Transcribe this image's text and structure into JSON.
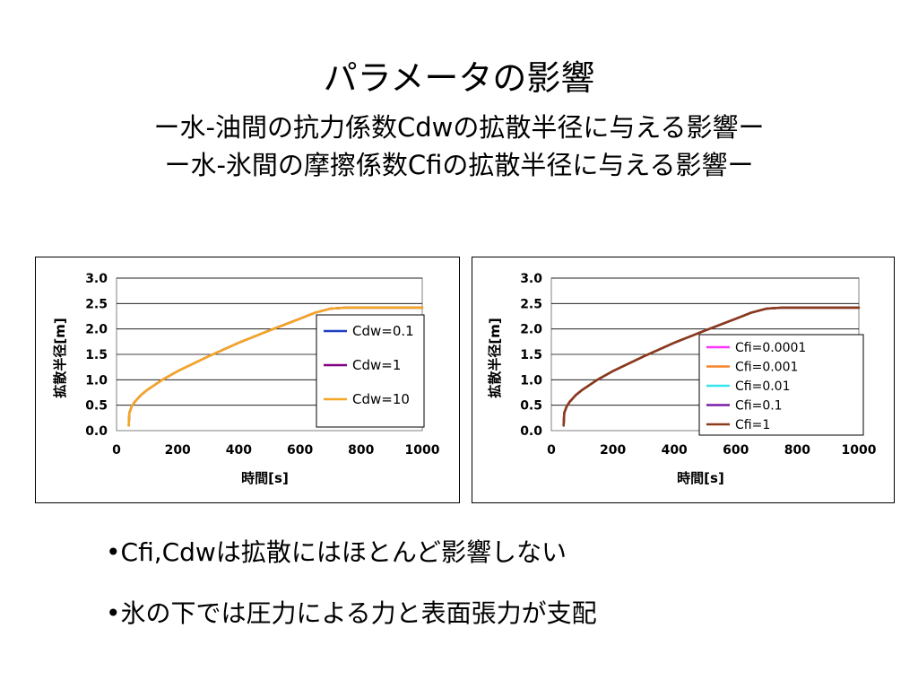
{
  "slide": {
    "title": "パラメータの影響",
    "subtitle1": "ー水-油間の抗力係数Cdwの拡散半径に与える影響ー",
    "subtitle2": "ー水-氷間の摩擦係数Cfiの拡散半径に与える影響ー",
    "bullets": [
      "•Cfi,Cdwは拡散にはほとんど影響しない",
      "•氷の下では圧力による力と表面張力が支配"
    ]
  },
  "chart_data": [
    {
      "type": "line",
      "xlabel": "時間[s]",
      "ylabel": "拡散半径[m]",
      "xlim": [
        0,
        1000
      ],
      "ylim": [
        0,
        3.0
      ],
      "xticks": [
        "0",
        "200",
        "400",
        "600",
        "800",
        "1000"
      ],
      "yticks": [
        "0.0",
        "0.5",
        "1.0",
        "1.5",
        "2.0",
        "2.5",
        "3.0"
      ],
      "grid": true,
      "legend_position": "right",
      "x": [
        40,
        42,
        50,
        60,
        80,
        100,
        150,
        200,
        300,
        400,
        500,
        600,
        650,
        700,
        750,
        800,
        900,
        1000
      ],
      "series": [
        {
          "name": "Cdw=0.1",
          "color": "#1f3fbf",
          "values": [
            0.1,
            0.35,
            0.48,
            0.57,
            0.7,
            0.8,
            1.0,
            1.17,
            1.46,
            1.73,
            1.97,
            2.2,
            2.32,
            2.4,
            2.42,
            2.42,
            2.42,
            2.42
          ]
        },
        {
          "name": "Cdw=1",
          "color": "#800080",
          "values": [
            0.1,
            0.35,
            0.48,
            0.57,
            0.7,
            0.8,
            1.0,
            1.17,
            1.46,
            1.73,
            1.97,
            2.2,
            2.32,
            2.4,
            2.42,
            2.42,
            2.42,
            2.42
          ]
        },
        {
          "name": "Cdw=10",
          "color": "#f5a623",
          "values": [
            0.1,
            0.35,
            0.48,
            0.57,
            0.7,
            0.8,
            1.0,
            1.17,
            1.46,
            1.73,
            1.97,
            2.2,
            2.32,
            2.4,
            2.42,
            2.42,
            2.42,
            2.42
          ]
        }
      ]
    },
    {
      "type": "line",
      "xlabel": "時間[s]",
      "ylabel": "拡散半径[m]",
      "xlim": [
        0,
        1000
      ],
      "ylim": [
        0,
        3.0
      ],
      "xticks": [
        "0",
        "200",
        "400",
        "600",
        "800",
        "1000"
      ],
      "yticks": [
        "0.0",
        "0.5",
        "1.0",
        "1.5",
        "2.0",
        "2.5",
        "3.0"
      ],
      "grid": true,
      "legend_position": "bottom-right",
      "x": [
        40,
        42,
        50,
        60,
        80,
        100,
        150,
        200,
        300,
        400,
        500,
        600,
        650,
        700,
        750,
        800,
        900,
        1000
      ],
      "series": [
        {
          "name": "Cfi=0.0001",
          "color": "#ff33ff",
          "values": [
            0.1,
            0.35,
            0.48,
            0.57,
            0.7,
            0.8,
            1.0,
            1.17,
            1.46,
            1.73,
            1.97,
            2.2,
            2.32,
            2.4,
            2.42,
            2.42,
            2.42,
            2.42
          ]
        },
        {
          "name": "Cfi=0.001",
          "color": "#f5852a",
          "values": [
            0.1,
            0.35,
            0.48,
            0.57,
            0.7,
            0.8,
            1.0,
            1.17,
            1.46,
            1.73,
            1.97,
            2.2,
            2.32,
            2.4,
            2.42,
            2.42,
            2.42,
            2.42
          ]
        },
        {
          "name": "Cfi=0.01",
          "color": "#33e6f0",
          "values": [
            0.1,
            0.35,
            0.48,
            0.57,
            0.7,
            0.8,
            1.0,
            1.17,
            1.46,
            1.73,
            1.97,
            2.2,
            2.32,
            2.4,
            2.42,
            2.42,
            2.42,
            2.42
          ]
        },
        {
          "name": "Cfi=0.1",
          "color": "#7a1fa2",
          "values": [
            0.1,
            0.35,
            0.48,
            0.57,
            0.7,
            0.8,
            1.0,
            1.17,
            1.46,
            1.73,
            1.97,
            2.2,
            2.32,
            2.4,
            2.42,
            2.42,
            2.42,
            2.42
          ]
        },
        {
          "name": "Cfi=1",
          "color": "#8b3a1a",
          "values": [
            0.1,
            0.35,
            0.48,
            0.57,
            0.7,
            0.8,
            1.0,
            1.17,
            1.46,
            1.73,
            1.97,
            2.2,
            2.32,
            2.4,
            2.42,
            2.42,
            2.42,
            2.42
          ]
        }
      ]
    }
  ]
}
